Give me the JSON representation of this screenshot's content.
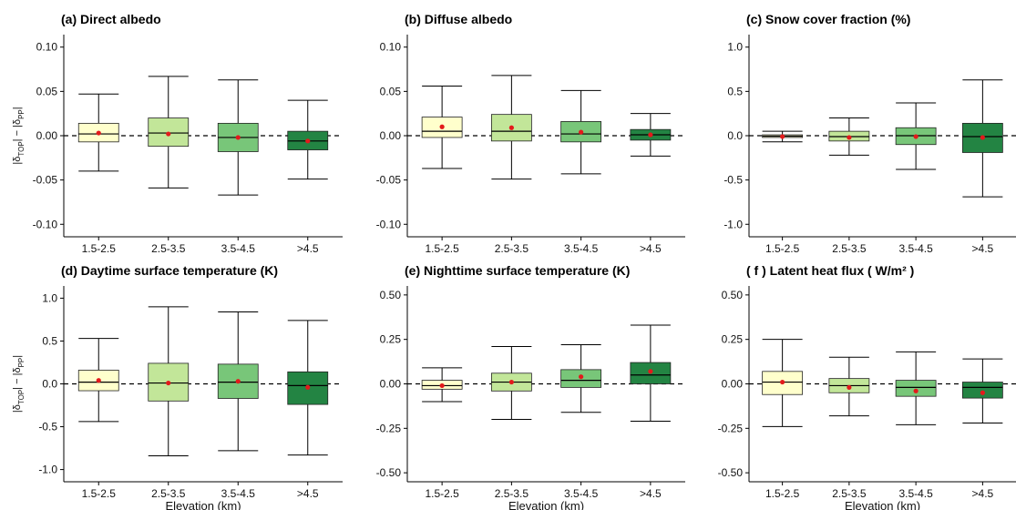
{
  "figure": {
    "xlabel": "Elevation (km)",
    "ylabel": {
      "a": "|",
      "b": "δ",
      "c": "TOP",
      "d": "| − |",
      "e": "δ",
      "f": "PP",
      "g": "|"
    }
  },
  "colors": {
    "box_fills": [
      "#ffffcc",
      "#c2e699",
      "#78c679",
      "#238443"
    ],
    "mean_point": "#e31a1c",
    "line": "#000000"
  },
  "chart_data": [
    {
      "id": "a",
      "type": "box",
      "title": "(a) Direct albedo",
      "categories": [
        "1.5-2.5",
        "2.5-3.5",
        "3.5-4.5",
        ">4.5"
      ],
      "ylim": [
        -0.11,
        0.11
      ],
      "yticks": [
        -0.1,
        -0.05,
        0.0,
        0.05,
        0.1
      ],
      "ytick_labels": [
        "-0.10",
        "-0.05",
        "0.00",
        "0.05",
        "0.10"
      ],
      "boxes": [
        {
          "min": -0.04,
          "q1": -0.007,
          "median": 0.002,
          "q3": 0.014,
          "max": 0.047,
          "mean": 0.003
        },
        {
          "min": -0.059,
          "q1": -0.012,
          "median": 0.003,
          "q3": 0.02,
          "max": 0.067,
          "mean": 0.002
        },
        {
          "min": -0.067,
          "q1": -0.018,
          "median": -0.002,
          "q3": 0.014,
          "max": 0.063,
          "mean": -0.002
        },
        {
          "min": -0.049,
          "q1": -0.016,
          "median": -0.006,
          "q3": 0.005,
          "max": 0.04,
          "mean": -0.006
        }
      ],
      "reference_line": 0,
      "grid": false
    },
    {
      "id": "b",
      "type": "box",
      "title": "(b) Diffuse albedo",
      "categories": [
        "1.5-2.5",
        "2.5-3.5",
        "3.5-4.5",
        ">4.5"
      ],
      "ylim": [
        -0.11,
        0.11
      ],
      "yticks": [
        -0.1,
        -0.05,
        0.0,
        0.05,
        0.1
      ],
      "ytick_labels": [
        "-0.10",
        "-0.05",
        "0.00",
        "0.05",
        "0.10"
      ],
      "boxes": [
        {
          "min": -0.037,
          "q1": -0.002,
          "median": 0.005,
          "q3": 0.021,
          "max": 0.056,
          "mean": 0.01
        },
        {
          "min": -0.049,
          "q1": -0.006,
          "median": 0.005,
          "q3": 0.024,
          "max": 0.068,
          "mean": 0.009
        },
        {
          "min": -0.043,
          "q1": -0.007,
          "median": 0.002,
          "q3": 0.016,
          "max": 0.051,
          "mean": 0.004
        },
        {
          "min": -0.023,
          "q1": -0.005,
          "median": 0.001,
          "q3": 0.007,
          "max": 0.025,
          "mean": 0.001
        }
      ],
      "reference_line": 0,
      "grid": false
    },
    {
      "id": "c",
      "type": "box",
      "title": "(c) Snow cover fraction (%)",
      "categories": [
        "1.5-2.5",
        "2.5-3.5",
        "3.5-4.5",
        ">4.5"
      ],
      "ylim": [
        -1.1,
        1.1
      ],
      "yticks": [
        -1.0,
        -0.5,
        0.0,
        0.5,
        1.0
      ],
      "ytick_labels": [
        "-1.0",
        "-0.5",
        "0.0",
        "0.5",
        "1.0"
      ],
      "boxes": [
        {
          "min": -0.07,
          "q1": -0.02,
          "median": -0.005,
          "q3": 0.01,
          "max": 0.05,
          "mean": -0.01
        },
        {
          "min": -0.22,
          "q1": -0.06,
          "median": -0.01,
          "q3": 0.05,
          "max": 0.2,
          "mean": -0.02
        },
        {
          "min": -0.38,
          "q1": -0.1,
          "median": 0.0,
          "q3": 0.09,
          "max": 0.37,
          "mean": -0.01
        },
        {
          "min": -0.69,
          "q1": -0.19,
          "median": -0.01,
          "q3": 0.14,
          "max": 0.63,
          "mean": -0.02
        }
      ],
      "reference_line": 0,
      "grid": false
    },
    {
      "id": "d",
      "type": "box",
      "title": "(d) Daytime surface temperature (K)",
      "categories": [
        "1.5-2.5",
        "2.5-3.5",
        "3.5-4.5",
        ">4.5"
      ],
      "ylim": [
        -1.1,
        1.1
      ],
      "yticks": [
        -1.0,
        -0.5,
        0.0,
        0.5,
        1.0
      ],
      "ytick_labels": [
        "-1.0",
        "-0.5",
        "0.0",
        "0.5",
        "1.0"
      ],
      "boxes": [
        {
          "min": -0.44,
          "q1": -0.08,
          "median": 0.02,
          "q3": 0.16,
          "max": 0.53,
          "mean": 0.04
        },
        {
          "min": -0.84,
          "q1": -0.2,
          "median": 0.01,
          "q3": 0.24,
          "max": 0.9,
          "mean": 0.01
        },
        {
          "min": -0.78,
          "q1": -0.17,
          "median": 0.02,
          "q3": 0.23,
          "max": 0.84,
          "mean": 0.03
        },
        {
          "min": -0.83,
          "q1": -0.24,
          "median": -0.02,
          "q3": 0.14,
          "max": 0.74,
          "mean": -0.04
        }
      ],
      "reference_line": 0,
      "grid": false
    },
    {
      "id": "e",
      "type": "box",
      "title": "(e) Nighttime surface temperature (K)",
      "categories": [
        "1.5-2.5",
        "2.5-3.5",
        "3.5-4.5",
        ">4.5"
      ],
      "ylim": [
        -0.53,
        0.53
      ],
      "yticks": [
        -0.5,
        -0.25,
        0.0,
        0.25,
        0.5
      ],
      "ytick_labels": [
        "-0.50",
        "-0.25",
        "0.00",
        "0.25",
        "0.50"
      ],
      "boxes": [
        {
          "min": -0.1,
          "q1": -0.03,
          "median": -0.01,
          "q3": 0.02,
          "max": 0.09,
          "mean": -0.01
        },
        {
          "min": -0.2,
          "q1": -0.04,
          "median": 0.01,
          "q3": 0.06,
          "max": 0.21,
          "mean": 0.01
        },
        {
          "min": -0.16,
          "q1": -0.02,
          "median": 0.02,
          "q3": 0.08,
          "max": 0.22,
          "mean": 0.04
        },
        {
          "min": -0.21,
          "q1": 0.0,
          "median": 0.05,
          "q3": 0.12,
          "max": 0.33,
          "mean": 0.07
        }
      ],
      "reference_line": 0,
      "grid": false
    },
    {
      "id": "f",
      "type": "box",
      "title": "( f ) Latent heat flux ( W/m² )",
      "categories": [
        "1.5-2.5",
        "2.5-3.5",
        "3.5-4.5",
        ">4.5"
      ],
      "ylim": [
        -0.53,
        0.53
      ],
      "yticks": [
        -0.5,
        -0.25,
        0.0,
        0.25,
        0.5
      ],
      "ytick_labels": [
        "-0.50",
        "-0.25",
        "0.00",
        "0.25",
        "0.50"
      ],
      "boxes": [
        {
          "min": -0.24,
          "q1": -0.06,
          "median": 0.01,
          "q3": 0.07,
          "max": 0.25,
          "mean": 0.01
        },
        {
          "min": -0.18,
          "q1": -0.05,
          "median": -0.01,
          "q3": 0.03,
          "max": 0.15,
          "mean": -0.02
        },
        {
          "min": -0.23,
          "q1": -0.07,
          "median": -0.02,
          "q3": 0.02,
          "max": 0.18,
          "mean": -0.04
        },
        {
          "min": -0.22,
          "q1": -0.08,
          "median": -0.02,
          "q3": 0.01,
          "max": 0.14,
          "mean": -0.05
        }
      ],
      "reference_line": 0,
      "grid": false
    }
  ]
}
